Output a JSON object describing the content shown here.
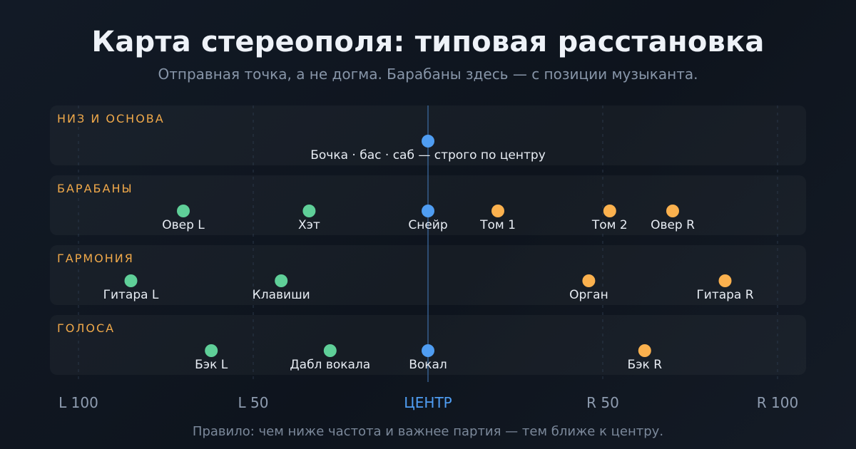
{
  "header": {
    "title": "Карта стереополя: типовая расстановка",
    "subtitle": "Отправная точка, а не догма. Барабаны здесь — с позиции музыканта."
  },
  "footer": {
    "rule": "Правило: чем ниже частота и важнее партия — тем ближе к центру."
  },
  "colors": {
    "left": "#5fcf98",
    "center": "#4f9df2",
    "right": "#fbb14e",
    "row_label": "#f0a94a",
    "axis_label": "#8e9cb0",
    "center_label": "#4f9df2",
    "item_label": "#e8edf4"
  },
  "axis": {
    "pan_range": [
      -100,
      100
    ],
    "ticks": [
      {
        "pan": -100,
        "label": "L 100",
        "center": false
      },
      {
        "pan": -50,
        "label": "L 50",
        "center": false
      },
      {
        "pan": 0,
        "label": "ЦЕНТР",
        "center": true
      },
      {
        "pan": 50,
        "label": "R 50",
        "center": false
      },
      {
        "pan": 100,
        "label": "R 100",
        "center": false
      }
    ]
  },
  "rows": [
    {
      "label": "НИЗ И ОСНОВА",
      "items": [
        {
          "name": "Бочка · бас · саб — строго по центру",
          "pan": 0,
          "side": "center"
        }
      ]
    },
    {
      "label": "БАРАБАНЫ",
      "items": [
        {
          "name": "Овер L",
          "pan": -70,
          "side": "left"
        },
        {
          "name": "Хэт",
          "pan": -34,
          "side": "left"
        },
        {
          "name": "Снейр",
          "pan": 0,
          "side": "center"
        },
        {
          "name": "Том 1",
          "pan": 20,
          "side": "right"
        },
        {
          "name": "Том 2",
          "pan": 52,
          "side": "right"
        },
        {
          "name": "Овер R",
          "pan": 70,
          "side": "right"
        }
      ]
    },
    {
      "label": "ГАРМОНИЯ",
      "items": [
        {
          "name": "Гитара L",
          "pan": -85,
          "side": "left"
        },
        {
          "name": "Клавиши",
          "pan": -42,
          "side": "left"
        },
        {
          "name": "Орган",
          "pan": 46,
          "side": "right"
        },
        {
          "name": "Гитара R",
          "pan": 85,
          "side": "right"
        }
      ]
    },
    {
      "label": "ГОЛОСА",
      "items": [
        {
          "name": "Бэк L",
          "pan": -62,
          "side": "left"
        },
        {
          "name": "Дабл вокала",
          "pan": -28,
          "side": "left"
        },
        {
          "name": "Вокал",
          "pan": 0,
          "side": "center"
        },
        {
          "name": "Бэк R",
          "pan": 62,
          "side": "right"
        }
      ]
    }
  ]
}
